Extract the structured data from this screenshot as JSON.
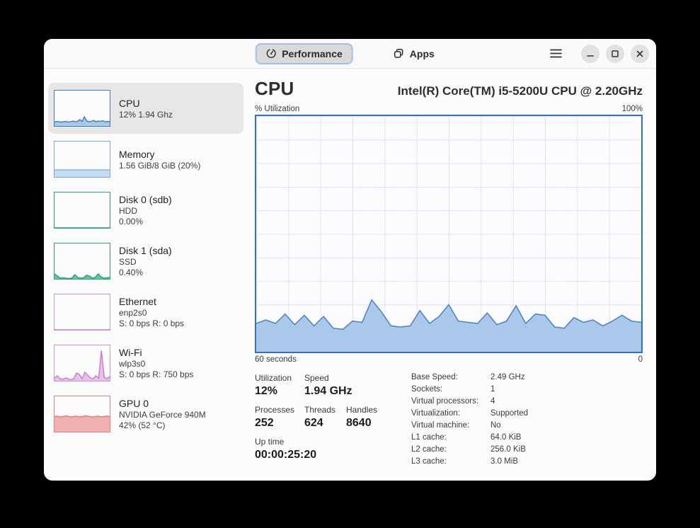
{
  "titlebar": {
    "tabs": [
      {
        "label": "Performance",
        "icon": "gauge-icon",
        "active": true
      },
      {
        "label": "Apps",
        "icon": "apps-icon",
        "active": false
      }
    ],
    "menu_icon": "hamburger-menu-icon",
    "window_controls": [
      {
        "name": "minimize",
        "icon": "minimize-icon"
      },
      {
        "name": "maximize",
        "icon": "maximize-icon"
      },
      {
        "name": "close",
        "icon": "close-icon"
      }
    ]
  },
  "sidebar": {
    "items": [
      {
        "title": "CPU",
        "lines": [
          "12% 1.94 Ghz",
          ""
        ],
        "selected": true,
        "chart": {
          "values": [
            11,
            13,
            12,
            11,
            12,
            13,
            11,
            12,
            14,
            12,
            13,
            18,
            13,
            26,
            14,
            12,
            13,
            16,
            12,
            14,
            13,
            15,
            12,
            13,
            12
          ],
          "max": 100,
          "line_color": "#4a80c2",
          "fill_color": "#a9c8ea",
          "border_color": "#3b7bbd"
        }
      },
      {
        "title": "Memory",
        "lines": [
          "1.56 GiB/8 GiB (20%)",
          ""
        ],
        "selected": false,
        "chart": {
          "values": [
            20,
            20,
            20,
            20,
            20,
            20,
            20,
            20,
            20,
            20
          ],
          "max": 100,
          "line_color": "#8fb7e3",
          "fill_color": "#c7dcf3",
          "border_color": "#7aa7d7"
        }
      },
      {
        "title": "Disk 0 (sdb)",
        "lines": [
          "HDD",
          "0.00%"
        ],
        "selected": false,
        "chart": {
          "values": [
            0,
            0,
            0,
            0,
            0,
            0,
            0,
            0,
            0,
            0
          ],
          "max": 100,
          "line_color": "#2da173",
          "fill_color": "#6fc49d",
          "border_color": "#2da173"
        }
      },
      {
        "title": "Disk 1 (sda)",
        "lines": [
          "SSD",
          "0.40%"
        ],
        "selected": false,
        "chart": {
          "values": [
            14,
            8,
            2,
            3,
            2,
            1,
            2,
            12,
            4,
            2,
            3,
            10,
            8,
            2,
            4,
            14,
            6,
            2,
            3,
            4
          ],
          "max": 100,
          "line_color": "#2da173",
          "fill_color": "#6fc49d",
          "border_color": "#2da173"
        }
      },
      {
        "title": "Ethernet",
        "lines": [
          "enp2s0",
          "S: 0 bps R: 0 bps"
        ],
        "selected": false,
        "chart": {
          "values": [
            0,
            0,
            0,
            0,
            0,
            0,
            0,
            0,
            0,
            0
          ],
          "max": 100,
          "line_color": "#c77fd0",
          "fill_color": "#e7c3ea",
          "border_color": "#cf8fd4"
        }
      },
      {
        "title": "Wi-Fi",
        "lines": [
          "wlp3s0",
          "S: 0 bps R: 750 bps"
        ],
        "selected": false,
        "chart": {
          "values": [
            8,
            14,
            6,
            4,
            8,
            5,
            3,
            6,
            22,
            18,
            6,
            24,
            16,
            8,
            5,
            14,
            7,
            85,
            10,
            6,
            12
          ],
          "max": 100,
          "line_color": "#c77fd0",
          "fill_color": "#e7c3ea",
          "border_color": "#cf8fd4"
        }
      },
      {
        "title": "GPU 0",
        "lines": [
          "NVIDIA GeForce 940M",
          "42% (52 °C)"
        ],
        "selected": false,
        "chart": {
          "values": [
            43,
            44,
            42,
            43,
            45,
            43,
            42,
            44,
            43,
            42,
            44,
            45,
            43,
            42,
            43,
            44,
            42,
            43,
            44,
            43
          ],
          "max": 100,
          "line_color": "#dd7f7f",
          "fill_color": "#f0b0b0",
          "border_color": "#df8181"
        }
      }
    ]
  },
  "main": {
    "title": "CPU",
    "subtitle": "Intel(R) Core(TM) i5-5200U CPU @ 2.20GHz",
    "axis_top_left": "% Utilization",
    "axis_top_right": "100%",
    "axis_bottom_left": "60 seconds",
    "axis_bottom_right": "0",
    "stats": [
      {
        "label": "Utilization",
        "value": "12%"
      },
      {
        "label": "Speed",
        "value": "1.94 GHz"
      },
      {
        "label": "Processes",
        "value": "252"
      },
      {
        "label": "Threads",
        "value": "624"
      },
      {
        "label": "Handles",
        "value": "8640"
      },
      {
        "label": "Up time",
        "value": "00:00:25:20"
      }
    ],
    "details": [
      {
        "label": "Base Speed:",
        "value": "2.49 GHz"
      },
      {
        "label": "Sockets:",
        "value": "1"
      },
      {
        "label": "Virtual processors:",
        "value": "4"
      },
      {
        "label": "Virtualization:",
        "value": "Supported"
      },
      {
        "label": "Virtual machine:",
        "value": "No"
      },
      {
        "label": "L1 cache:",
        "value": "64.0 KiB"
      },
      {
        "label": "L2 cache:",
        "value": "256.0 KiB"
      },
      {
        "label": "L3 cache:",
        "value": "3.0 MiB"
      }
    ]
  },
  "chart_data": {
    "type": "area",
    "title": "% Utilization",
    "ylabel": "% Utilization",
    "ylim": [
      0,
      100
    ],
    "x_range_labels": [
      "60 seconds",
      "0"
    ],
    "grid": true,
    "legend": "none",
    "values": [
      12,
      13.5,
      12,
      16,
      11.5,
      15.5,
      11,
      15,
      10,
      9.5,
      13,
      12.5,
      22,
      17,
      11,
      10.5,
      11,
      17.5,
      12,
      15,
      20,
      13,
      12.5,
      12,
      16.5,
      11.5,
      13,
      19.5,
      12,
      16,
      15.5,
      10.5,
      10,
      14.5,
      12.5,
      13.5,
      11,
      13,
      15.5,
      13,
      12.5
    ],
    "max": 100,
    "line_color": "#4a80c2",
    "fill_color": "#a9c8ea",
    "border_color": "#3173b5",
    "grid_color": "#dde4f1"
  }
}
